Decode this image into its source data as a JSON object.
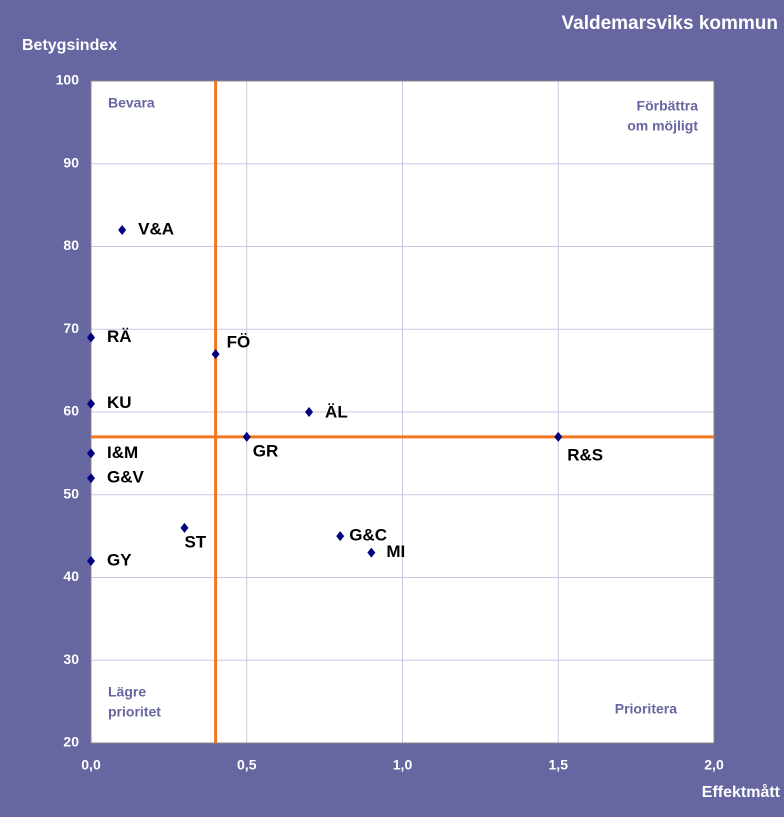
{
  "chart_data": {
    "type": "scatter",
    "title": "Valdemarsviks kommun",
    "x_label": "Effektmått",
    "y_label": "Betygsindex",
    "series": [
      {
        "name": null,
        "color": "#000080",
        "labels": [
          "V&A",
          "RÄ",
          "FÖ",
          "KU",
          "ÄL",
          "GR",
          "R&S",
          "I&M",
          "G&V",
          "ST",
          "G&C",
          "MI",
          "GY"
        ],
        "x": [
          0.1,
          0,
          0.4,
          0,
          0.7,
          0.5,
          1.5,
          0,
          0,
          0.3,
          0.8,
          0.9,
          0
        ],
        "values": [
          82,
          69,
          67,
          61,
          60,
          57,
          57,
          55,
          52,
          46,
          45,
          43,
          42
        ]
      }
    ],
    "xlim": [
      0,
      2
    ],
    "ylim": [
      20,
      100
    ],
    "xticks": [
      {
        "value": 0,
        "label": "0,0"
      },
      {
        "value": 0.5,
        "label": "0,5"
      },
      {
        "value": 1,
        "label": "1,0"
      },
      {
        "value": 1.5,
        "label": "1,5"
      },
      {
        "value": 2,
        "label": "2,0"
      }
    ],
    "yticks": [
      20,
      30,
      40,
      50,
      60,
      70,
      80,
      90,
      100
    ],
    "grid": true,
    "reference_lines": {
      "x": 0.4,
      "y": 57,
      "color": "#f07820"
    },
    "annotations": [
      [
        "Bevara"
      ],
      [
        "Förbättra",
        "om möjligt"
      ],
      [
        "Lägre",
        "prioritet"
      ],
      [
        "Prioritera"
      ]
    ]
  }
}
